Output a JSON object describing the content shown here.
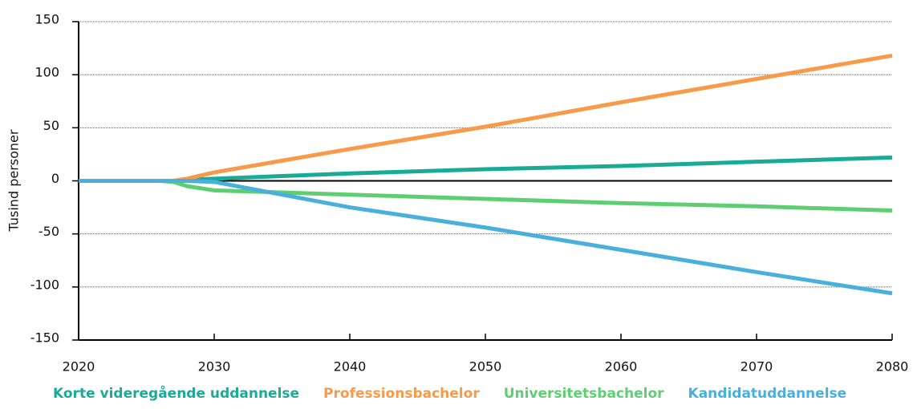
{
  "chart_data": {
    "type": "line",
    "y_label": "Tusind personer",
    "x": [
      2020,
      2026,
      2027,
      2028,
      2030,
      2035,
      2040,
      2050,
      2060,
      2070,
      2080
    ],
    "series": [
      {
        "name": "Korte videregående uddannelse",
        "color": "#1aab97",
        "values": [
          0,
          0,
          0,
          1,
          2,
          4.5,
          7,
          11,
          14,
          18,
          22
        ]
      },
      {
        "name": "Professionsbachelor",
        "color": "#f79a4a",
        "values": [
          0,
          0,
          0,
          2,
          8,
          19,
          30,
          51,
          74,
          96,
          118
        ]
      },
      {
        "name": "Universitetsbachelor",
        "color": "#5dcf72",
        "values": [
          0,
          0,
          -1,
          -5,
          -9,
          -11,
          -13,
          -17,
          -21,
          -24,
          -28
        ]
      },
      {
        "name": "Kandidatuddannelse",
        "color": "#49b0de",
        "values": [
          0,
          0,
          0,
          0,
          -1,
          -13,
          -25,
          -44,
          -65,
          -86,
          -106
        ]
      }
    ],
    "xlim": [
      2020,
      2080
    ],
    "xticks": [
      2020,
      2030,
      2040,
      2050,
      2060,
      2070,
      2080
    ],
    "ylim": [
      -150,
      150
    ],
    "yticks": [
      150,
      100,
      50,
      0,
      -50,
      -100,
      -150
    ],
    "grid": true
  }
}
